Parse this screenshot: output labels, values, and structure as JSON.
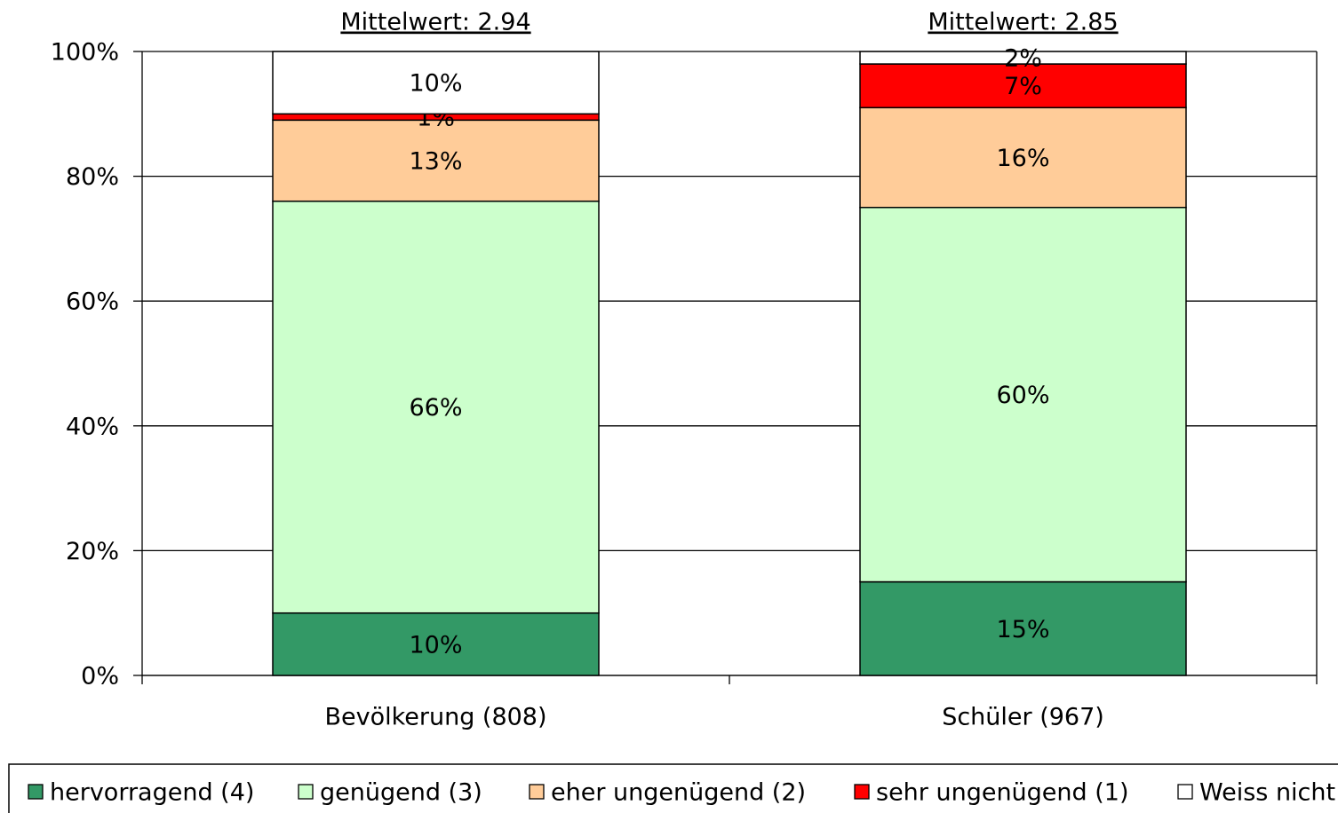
{
  "chart_data": {
    "type": "stacked_bar",
    "categories": [
      "Bevölkerung (808)",
      "Schüler (967)"
    ],
    "annotations": [
      "Mittelwert: 2.94",
      "Mittelwert: 2.85"
    ],
    "series": [
      {
        "name": "hervorragend (4)",
        "color": "#339966",
        "label_color": "#ffffff",
        "values": [
          10,
          15
        ],
        "value_labels": [
          "10%",
          "15%"
        ]
      },
      {
        "name": "genügend (3)",
        "color": "#ccffcc",
        "values": [
          66,
          60
        ],
        "value_labels": [
          "66%",
          "60%"
        ]
      },
      {
        "name": "eher ungenügend (2)",
        "color": "#ffcc99",
        "values": [
          13,
          16
        ],
        "value_labels": [
          "13%",
          "16%"
        ]
      },
      {
        "name": "sehr ungenügend (1)",
        "color": "#ff0000",
        "values": [
          1,
          7
        ],
        "value_labels": [
          "1%",
          "7%"
        ]
      },
      {
        "name": "Weiss nicht",
        "color": "#ffffff",
        "values": [
          10,
          2
        ],
        "value_labels": [
          "10%",
          "2%"
        ]
      }
    ],
    "ylim": [
      0,
      100
    ],
    "yticks": [
      {
        "value": 0,
        "label": "0%"
      },
      {
        "value": 20,
        "label": "20%"
      },
      {
        "value": 40,
        "label": "40%"
      },
      {
        "value": 60,
        "label": "60%"
      },
      {
        "value": 80,
        "label": "80%"
      },
      {
        "value": 100,
        "label": "100%"
      }
    ],
    "grid": true
  }
}
